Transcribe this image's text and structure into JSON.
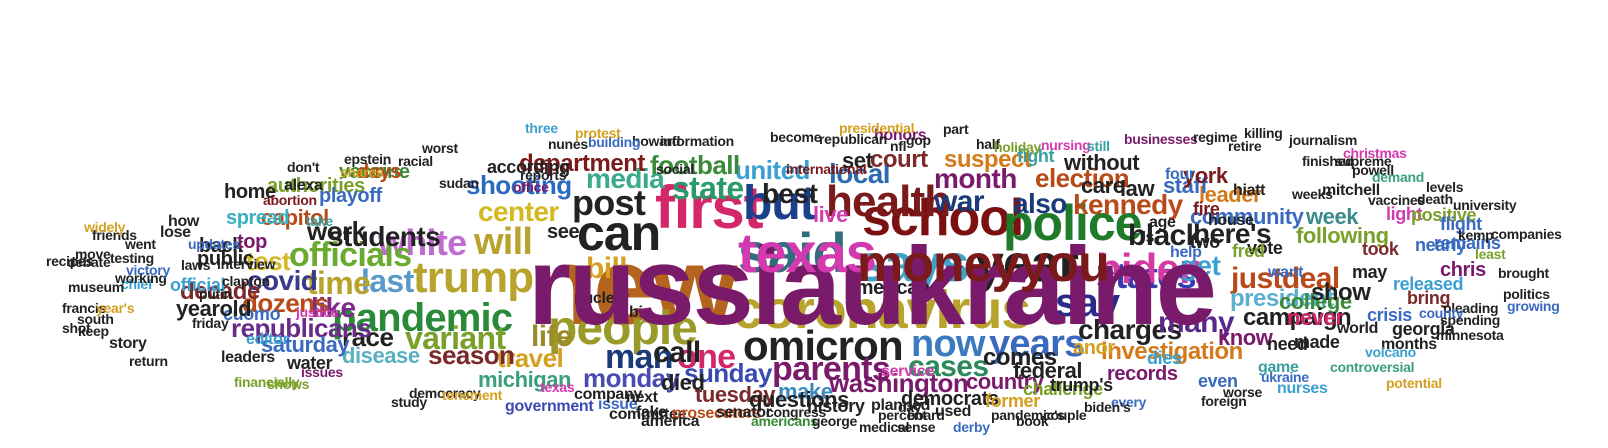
{
  "cloud": {
    "words": [
      {
        "text": "new",
        "color": "#b5641f"
      },
      {
        "text": "said",
        "color": "#2f6e7a"
      },
      {
        "text": "says",
        "color": "#3fa3c6"
      },
      {
        "text": "coronavirus",
        "color": "#b8a32c"
      },
      {
        "text": "people",
        "color": "#9a9a2a"
      },
      {
        "text": "first",
        "color": "#d4276b"
      },
      {
        "text": "omicron",
        "color": "#222222"
      },
      {
        "text": "school",
        "color": "#7a1010"
      },
      {
        "text": "year",
        "color": "#222222"
      },
      {
        "text": "police",
        "color": "#1f7a2a"
      },
      {
        "text": "trump",
        "color": "#b8a32c"
      },
      {
        "text": "pandemic",
        "color": "#2a8a3a"
      },
      {
        "text": "can",
        "color": "#222222"
      },
      {
        "text": "but",
        "color": "#1c3f8a"
      },
      {
        "text": "health",
        "color": "#7a1a1a"
      },
      {
        "text": "will",
        "color": "#b8a32c"
      },
      {
        "text": "white",
        "color": "#c06bd0"
      },
      {
        "text": "post",
        "color": "#222222"
      },
      {
        "text": "say",
        "color": "#2a2a8a"
      },
      {
        "text": "states",
        "color": "#3a3ab0"
      },
      {
        "text": "biden",
        "color": "#d43aa0"
      },
      {
        "text": "now",
        "color": "#3a7ac0"
      },
      {
        "text": "years",
        "color": "#3a6ac0"
      },
      {
        "text": "parents",
        "color": "#7a1a6a"
      },
      {
        "text": "man",
        "color": "#1a3a7a"
      },
      {
        "text": "one",
        "color": "#d4276b"
      },
      {
        "text": "officials",
        "color": "#6aaa30"
      },
      {
        "text": "variant",
        "color": "#7aa02a"
      },
      {
        "text": "last",
        "color": "#5a9ac8"
      },
      {
        "text": "time",
        "color": "#b8a32c"
      },
      {
        "text": "students",
        "color": "#222222"
      },
      {
        "text": "center",
        "color": "#d4b820"
      },
      {
        "text": "shooting",
        "color": "#2a6ac0"
      },
      {
        "text": "state",
        "color": "#2a9a6a"
      },
      {
        "text": "best",
        "color": "#222222"
      },
      {
        "text": "war",
        "color": "#1a3a7a"
      },
      {
        "text": "black",
        "color": "#222222"
      },
      {
        "text": "kennedy",
        "color": "#b84a1a"
      },
      {
        "text": "charges",
        "color": "#222222"
      },
      {
        "text": "many",
        "color": "#5a2a8a"
      },
      {
        "text": "cases",
        "color": "#2a8a5a"
      },
      {
        "text": "life",
        "color": "#9a8a2a"
      },
      {
        "text": "media",
        "color": "#3aaa8a"
      },
      {
        "text": "local",
        "color": "#2a6ab0"
      },
      {
        "text": "month",
        "color": "#7a1a6a"
      },
      {
        "text": "also",
        "color": "#1a3a7a"
      },
      {
        "text": "election",
        "color": "#b84a1a"
      },
      {
        "text": "here's",
        "color": "#222222"
      },
      {
        "text": "get",
        "color": "#3aa0d0"
      },
      {
        "text": "community",
        "color": "#3a6ac0"
      },
      {
        "text": "justdeal",
        "color": "#b84a1a"
      },
      {
        "text": "president",
        "color": "#5ab0d0"
      },
      {
        "text": "investigation",
        "color": "#d47a1a"
      },
      {
        "text": "washington",
        "color": "#7a1a6a"
      },
      {
        "text": "monday",
        "color": "#4a4ab0"
      },
      {
        "text": "sunday",
        "color": "#3a4ab0"
      },
      {
        "text": "call",
        "color": "#222222"
      },
      {
        "text": "travel",
        "color": "#d4a020"
      },
      {
        "text": "season",
        "color": "#7a2a2a"
      },
      {
        "text": "race",
        "color": "#222222"
      },
      {
        "text": "like",
        "color": "#7a2a8a"
      },
      {
        "text": "republicans",
        "color": "#6a2a8a"
      },
      {
        "text": "covid",
        "color": "#3a3a8a"
      },
      {
        "text": "dozens",
        "color": "#b84a1a"
      },
      {
        "text": "decade",
        "color": "#7a2a2a"
      },
      {
        "text": "test",
        "color": "#d4b820"
      },
      {
        "text": "work",
        "color": "#222222"
      },
      {
        "text": "united",
        "color": "#3aa0d0"
      },
      {
        "text": "football",
        "color": "#3a8a3a"
      },
      {
        "text": "department",
        "color": "#7a1a1a"
      },
      {
        "text": "court",
        "color": "#7a2a2a"
      },
      {
        "text": "suspect",
        "color": "#d47a1a"
      },
      {
        "text": "comes",
        "color": "#222222"
      },
      {
        "text": "country",
        "color": "#7a1a6a"
      },
      {
        "text": "federal",
        "color": "#222222"
      },
      {
        "text": "anor",
        "color": "#d4a020"
      },
      {
        "text": "college",
        "color": "#3a8a3a"
      },
      {
        "text": "following",
        "color": "#7aa02a"
      },
      {
        "text": "show",
        "color": "#222222"
      },
      {
        "text": "campaign",
        "color": "#222222"
      },
      {
        "text": "never",
        "color": "#d4276b"
      },
      {
        "text": "know",
        "color": "#7a1a6a"
      },
      {
        "text": "week",
        "color": "#3a8a8a"
      },
      {
        "text": "leader",
        "color": "#d47a1a"
      },
      {
        "text": "staff",
        "color": "#3a6ac0"
      },
      {
        "text": "york",
        "color": "#7a1a1a"
      },
      {
        "text": "care",
        "color": "#222222"
      },
      {
        "text": "law",
        "color": "#222222"
      },
      {
        "text": "without",
        "color": "#222222"
      },
      {
        "text": "fight",
        "color": "#3aa0a0"
      },
      {
        "text": "honors",
        "color": "#7a1a6a"
      },
      {
        "text": "set",
        "color": "#222222"
      },
      {
        "text": "live",
        "color": "#d43ab0"
      },
      {
        "text": "american",
        "color": "#222222"
      },
      {
        "text": "make",
        "color": "#3a8ac0"
      },
      {
        "text": "tuesday",
        "color": "#7a2a2a"
      },
      {
        "text": "died",
        "color": "#222222"
      },
      {
        "text": "michigan",
        "color": "#3aa07a"
      },
      {
        "text": "disease",
        "color": "#5ab0c0"
      },
      {
        "text": "saturday",
        "color": "#3a6ac0"
      },
      {
        "text": "water",
        "color": "#222222"
      },
      {
        "text": "cuomo",
        "color": "#3a6ac0"
      },
      {
        "text": "yearold",
        "color": "#222222"
      },
      {
        "text": "official",
        "color": "#3aa0d0"
      },
      {
        "text": "capitol",
        "color": "#b84a1a"
      },
      {
        "text": "authorities",
        "color": "#7aa02a"
      },
      {
        "text": "spread",
        "color": "#3ab0c0"
      },
      {
        "text": "home",
        "color": "#222222"
      },
      {
        "text": "back",
        "color": "#222222"
      },
      {
        "text": "public",
        "color": "#222222"
      },
      {
        "text": "top",
        "color": "#7a1a6a"
      },
      {
        "text": "playoff",
        "color": "#3a6ac0"
      },
      {
        "text": "vaccine",
        "color": "#3a8a3a"
      },
      {
        "text": "days",
        "color": "#b84a1a"
      },
      {
        "text": "according",
        "color": "#222222"
      },
      {
        "text": "questions",
        "color": "#222222"
      },
      {
        "text": "history",
        "color": "#222222"
      },
      {
        "text": "democrats",
        "color": "#222222"
      },
      {
        "text": "former",
        "color": "#d4a020"
      },
      {
        "text": "challenge",
        "color": "#7aa02a"
      },
      {
        "text": "trump's",
        "color": "#222222"
      },
      {
        "text": "records",
        "color": "#7a1a6a"
      },
      {
        "text": "even",
        "color": "#3a6ac0"
      },
      {
        "text": "need",
        "color": "#222222"
      },
      {
        "text": "made",
        "color": "#222222"
      },
      {
        "text": "world",
        "color": "#222222"
      },
      {
        "text": "crisis",
        "color": "#3a6ac0"
      },
      {
        "text": "georgia",
        "color": "#222222"
      },
      {
        "text": "released",
        "color": "#3aa0d0"
      },
      {
        "text": "chris",
        "color": "#7a1a6a"
      },
      {
        "text": "nearly",
        "color": "#3a6ac0"
      },
      {
        "text": "took",
        "color": "#7a2a2a"
      },
      {
        "text": "light",
        "color": "#d43ab0"
      },
      {
        "text": "positive",
        "color": "#7aa02a"
      },
      {
        "text": "remains",
        "color": "#3a6ac0"
      },
      {
        "text": "flight",
        "color": "#3a6ac0"
      },
      {
        "text": "bring",
        "color": "#7a2a2a"
      },
      {
        "text": "months",
        "color": "#222222"
      },
      {
        "text": "potential",
        "color": "#d4a020"
      },
      {
        "text": "game",
        "color": "#3aa0a0"
      },
      {
        "text": "nurses",
        "color": "#3aa0d0"
      },
      {
        "text": "dies",
        "color": "#3aa0d0"
      },
      {
        "text": "two",
        "color": "#222222"
      },
      {
        "text": "vote",
        "color": "#222222"
      },
      {
        "text": "fred",
        "color": "#7aa02a"
      },
      {
        "text": "may",
        "color": "#222222"
      },
      {
        "text": "help",
        "color": "#3a6ac0"
      },
      {
        "text": "want",
        "color": "#3a6ac0"
      },
      {
        "text": "house",
        "color": "#222222"
      },
      {
        "text": "hiatt",
        "color": "#222222"
      },
      {
        "text": "four",
        "color": "#3a6ac0"
      },
      {
        "text": "fire",
        "color": "#7a1a1a"
      },
      {
        "text": "age",
        "color": "#222222"
      },
      {
        "text": "'s",
        "color": "#222222"
      },
      {
        "text": "big",
        "color": "#222222"
      },
      {
        "text": "bill",
        "color": "#d4a020"
      },
      {
        "text": "see",
        "color": "#222222"
      },
      {
        "text": "nuclear",
        "color": "#222222"
      },
      {
        "text": "issue",
        "color": "#3a6ac0"
      },
      {
        "text": "committee",
        "color": "#222222"
      },
      {
        "text": "next",
        "color": "#222222"
      },
      {
        "text": "company",
        "color": "#222222"
      },
      {
        "text": "government",
        "color": "#3a4ab0"
      },
      {
        "text": "texas",
        "color": "#d43ab0"
      },
      {
        "text": "prosecutors",
        "color": "#b84a1a"
      },
      {
        "text": "fake",
        "color": "#222222"
      },
      {
        "text": "america",
        "color": "#222222"
      },
      {
        "text": "senator",
        "color": "#222222"
      },
      {
        "text": "congress",
        "color": "#222222"
      },
      {
        "text": "americans",
        "color": "#3a8a3a"
      },
      {
        "text": "george",
        "color": "#222222"
      },
      {
        "text": "percent",
        "color": "#222222"
      },
      {
        "text": "board",
        "color": "#222222"
      },
      {
        "text": "used",
        "color": "#222222"
      },
      {
        "text": "day",
        "color": "#222222"
      },
      {
        "text": "planned",
        "color": "#222222"
      },
      {
        "text": "service",
        "color": "#d43ab0"
      },
      {
        "text": "study",
        "color": "#222222"
      },
      {
        "text": "issues",
        "color": "#7a1a6a"
      },
      {
        "text": "leaders",
        "color": "#222222"
      },
      {
        "text": "editor",
        "color": "#3aa0d0"
      },
      {
        "text": "friday",
        "color": "#222222"
      },
      {
        "text": "putin",
        "color": "#222222"
      },
      {
        "text": "laws",
        "color": "#222222"
      },
      {
        "text": "chief",
        "color": "#3aa0d0"
      },
      {
        "text": "went",
        "color": "#222222"
      },
      {
        "text": "working",
        "color": "#222222"
      },
      {
        "text": "testing",
        "color": "#222222"
      },
      {
        "text": "friends",
        "color": "#222222"
      },
      {
        "text": "updates",
        "color": "#3a6ac0"
      },
      {
        "text": "how",
        "color": "#222222"
      },
      {
        "text": "lose",
        "color": "#222222"
      },
      {
        "text": "interview",
        "color": "#222222"
      },
      {
        "text": "clapton",
        "color": "#222222"
      },
      {
        "text": "abortion",
        "color": "#7a1a1a"
      },
      {
        "text": "alexa",
        "color": "#222222"
      },
      {
        "text": "don't",
        "color": "#222222"
      },
      {
        "text": "democracy",
        "color": "#222222"
      },
      {
        "text": "tenement",
        "color": "#d4a020"
      },
      {
        "text": "shows",
        "color": "#7aa02a"
      },
      {
        "text": "financially",
        "color": "#7aa02a"
      },
      {
        "text": "return",
        "color": "#222222"
      },
      {
        "text": "keep",
        "color": "#222222"
      },
      {
        "text": "story",
        "color": "#222222"
      },
      {
        "text": "francis",
        "color": "#222222"
      },
      {
        "text": "year's",
        "color": "#d4a020"
      },
      {
        "text": "museum",
        "color": "#222222"
      },
      {
        "text": "debate",
        "color": "#222222"
      },
      {
        "text": "victory",
        "color": "#3a6ac0"
      },
      {
        "text": "move",
        "color": "#222222"
      },
      {
        "text": "recipes",
        "color": "#222222"
      },
      {
        "text": "widely",
        "color": "#d4a020"
      },
      {
        "text": "south",
        "color": "#222222"
      },
      {
        "text": "shot",
        "color": "#222222"
      },
      {
        "text": "justice",
        "color": "#d43ab0"
      },
      {
        "text": "epstein",
        "color": "#222222"
      },
      {
        "text": "take",
        "color": "#3aa0a0"
      },
      {
        "text": "racial",
        "color": "#222222"
      },
      {
        "text": "shares",
        "color": "#d4a020"
      },
      {
        "text": "worst",
        "color": "#222222"
      },
      {
        "text": "nunes",
        "color": "#222222"
      },
      {
        "text": "sudan",
        "color": "#222222"
      },
      {
        "text": "reports",
        "color": "#222222"
      },
      {
        "text": "three",
        "color": "#3aa0d0"
      },
      {
        "text": "office",
        "color": "#7a1a6a"
      },
      {
        "text": "information",
        "color": "#222222"
      },
      {
        "text": "howard",
        "color": "#222222"
      },
      {
        "text": "building",
        "color": "#3a6ac0"
      },
      {
        "text": "protest",
        "color": "#d4a020"
      },
      {
        "text": "social",
        "color": "#222222"
      },
      {
        "text": "become",
        "color": "#222222"
      },
      {
        "text": "international",
        "color": "#7a1a1a"
      },
      {
        "text": "republican",
        "color": "#222222"
      },
      {
        "text": "presidential",
        "color": "#d4a020"
      },
      {
        "text": "gop",
        "color": "#222222"
      },
      {
        "text": "nfl",
        "color": "#222222"
      },
      {
        "text": "half",
        "color": "#222222"
      },
      {
        "text": "part",
        "color": "#222222"
      },
      {
        "text": "holiday",
        "color": "#7aa02a"
      },
      {
        "text": "nursing",
        "color": "#d43ab0"
      },
      {
        "text": "still",
        "color": "#3aa0a0"
      },
      {
        "text": "businesses",
        "color": "#7a1a6a"
      },
      {
        "text": "regime",
        "color": "#222222"
      },
      {
        "text": "killing",
        "color": "#222222"
      },
      {
        "text": "retire",
        "color": "#222222"
      },
      {
        "text": "journalism",
        "color": "#222222"
      },
      {
        "text": "finished",
        "color": "#222222"
      },
      {
        "text": "supreme",
        "color": "#222222"
      },
      {
        "text": "christmas",
        "color": "#d43ab0"
      },
      {
        "text": "weeks",
        "color": "#222222"
      },
      {
        "text": "mitchell",
        "color": "#222222"
      },
      {
        "text": "powell",
        "color": "#222222"
      },
      {
        "text": "demand",
        "color": "#3aa07a"
      },
      {
        "text": "vaccines",
        "color": "#222222"
      },
      {
        "text": "death",
        "color": "#222222"
      },
      {
        "text": "levels",
        "color": "#222222"
      },
      {
        "text": "university",
        "color": "#222222"
      },
      {
        "text": "kemp",
        "color": "#222222"
      },
      {
        "text": "companies",
        "color": "#222222"
      },
      {
        "text": "least",
        "color": "#7aa02a"
      },
      {
        "text": "brought",
        "color": "#222222"
      },
      {
        "text": "politics",
        "color": "#222222"
      },
      {
        "text": "growing",
        "color": "#3a6ac0"
      },
      {
        "text": "pleading",
        "color": "#222222"
      },
      {
        "text": "county",
        "color": "#3a6ac0"
      },
      {
        "text": "spending",
        "color": "#222222"
      },
      {
        "text": "minnesota",
        "color": "#222222"
      },
      {
        "text": "volcano",
        "color": "#3aa0d0"
      },
      {
        "text": "controversial",
        "color": "#3aa07a"
      },
      {
        "text": "ukraine",
        "color": "#3a6ac0"
      },
      {
        "text": "worse",
        "color": "#222222"
      },
      {
        "text": "foreign",
        "color": "#222222"
      },
      {
        "text": "every",
        "color": "#3a6ac0"
      },
      {
        "text": "biden's",
        "color": "#222222"
      },
      {
        "text": "couple",
        "color": "#222222"
      },
      {
        "text": "book",
        "color": "#222222"
      },
      {
        "text": "pandemic's",
        "color": "#222222"
      },
      {
        "text": "derby",
        "color": "#3a6ac0"
      },
      {
        "text": "sense",
        "color": "#222222"
      },
      {
        "text": "medical",
        "color": "#222222"
      },
      {
        "text": "russiaukraine",
        "color": "#7a1a6a"
      },
      {
        "text": "texas",
        "color": "#d43ab0"
      },
      {
        "text": "moneyyou",
        "color": "#7a1a1a"
      }
    ]
  }
}
